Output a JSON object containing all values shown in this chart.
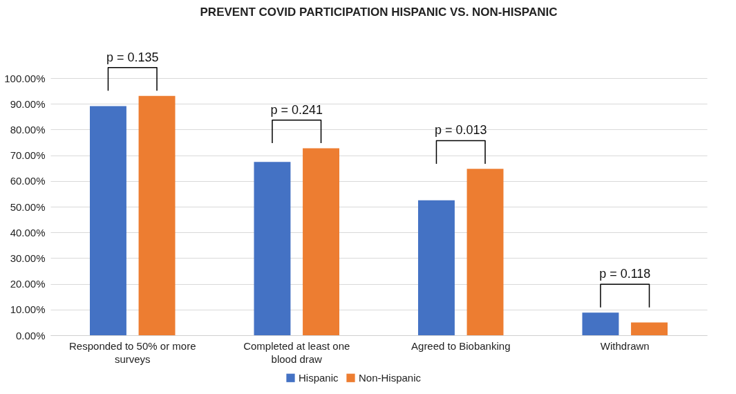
{
  "chart_data": {
    "type": "bar",
    "title": "PREVENT COVID PARTICIPATION HISPANIC VS. NON-HISPANIC",
    "categories": [
      "Responded to 50% or more surveys",
      "Completed at least one blood draw",
      "Agreed to Biobanking",
      "Withdrawn"
    ],
    "series": [
      {
        "name": "Hispanic",
        "color": "#4472c4",
        "values": [
          89.1,
          67.4,
          52.5,
          8.8
        ]
      },
      {
        "name": "Non-Hispanic",
        "color": "#ed7d31",
        "values": [
          93.1,
          72.7,
          64.7,
          5.0
        ]
      }
    ],
    "ylim": [
      0,
      100
    ],
    "yticks": [
      {
        "value": 0,
        "label": "0.00%"
      },
      {
        "value": 10,
        "label": "10.00%"
      },
      {
        "value": 20,
        "label": "20.00%"
      },
      {
        "value": 30,
        "label": "30.00%"
      },
      {
        "value": 40,
        "label": "40.00%"
      },
      {
        "value": 50,
        "label": "50.00%"
      },
      {
        "value": 60,
        "label": "60.00%"
      },
      {
        "value": 70,
        "label": "70.00%"
      },
      {
        "value": 80,
        "label": "80.00%"
      },
      {
        "value": 90,
        "label": "90.00%"
      },
      {
        "value": 100,
        "label": "100.00%"
      }
    ],
    "annotations": [
      "p = 0.135",
      "p = 0.241",
      "p = 0.013",
      "p = 0.118"
    ],
    "grid": "y",
    "legend": "bottom"
  }
}
